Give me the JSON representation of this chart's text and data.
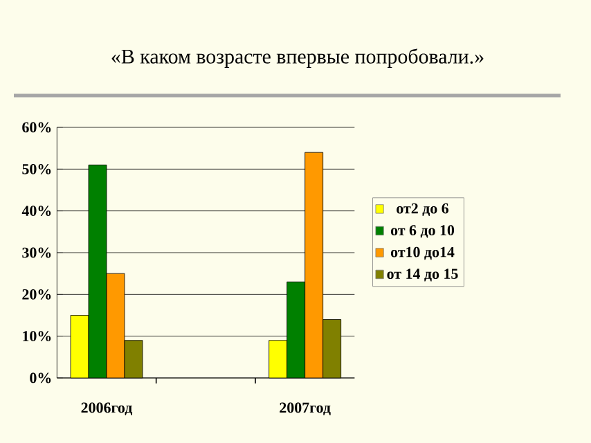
{
  "chart_data": {
    "type": "bar",
    "title": "«В каком возрасте впервые попробовали.»",
    "categories": [
      "2006год",
      null,
      "2007год"
    ],
    "series": [
      {
        "name": "от2 до 6",
        "color": "#ffff00",
        "values": [
          15,
          null,
          9
        ]
      },
      {
        "name": "от 6 до 10",
        "color": "#008000",
        "values": [
          51,
          null,
          23
        ]
      },
      {
        "name": "от10 до14",
        "color": "#ff9900",
        "values": [
          25,
          null,
          54
        ]
      },
      {
        "name": "от 14 до 15",
        "color": "#808000",
        "values": [
          9,
          null,
          14
        ]
      }
    ],
    "ylim": [
      0,
      60
    ],
    "yticks": [
      {
        "value": 0,
        "label": "0%"
      },
      {
        "value": 10,
        "label": "10%"
      },
      {
        "value": 20,
        "label": "20%"
      },
      {
        "value": 30,
        "label": "30%"
      },
      {
        "value": 40,
        "label": "40%"
      },
      {
        "value": 50,
        "label": "50%"
      },
      {
        "value": 60,
        "label": "60%"
      }
    ],
    "grid": "y",
    "legend": "right"
  }
}
